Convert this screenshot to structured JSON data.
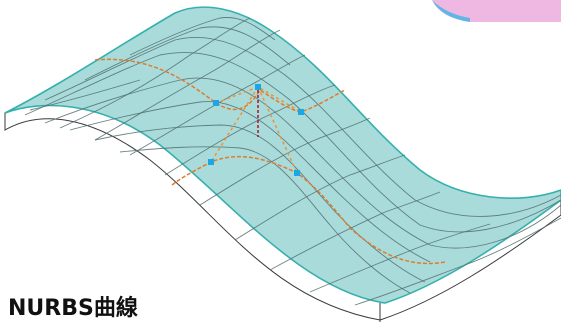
{
  "caption": "NURBS曲線",
  "colors": {
    "surface_fill": "#a9dbdb",
    "surface_edge": "#36b0ad",
    "grid_line": "#52706f",
    "curve": "#e07b2c",
    "control_line": "#f0922e",
    "control_point": "#1ba6e4",
    "height_marker": "#b0132c",
    "slab_side": "#ffffff",
    "slab_outline": "#3a3a3a",
    "corner_accent": "#e06bbf"
  },
  "icons": {
    "control_point": "square-handle-icon"
  }
}
